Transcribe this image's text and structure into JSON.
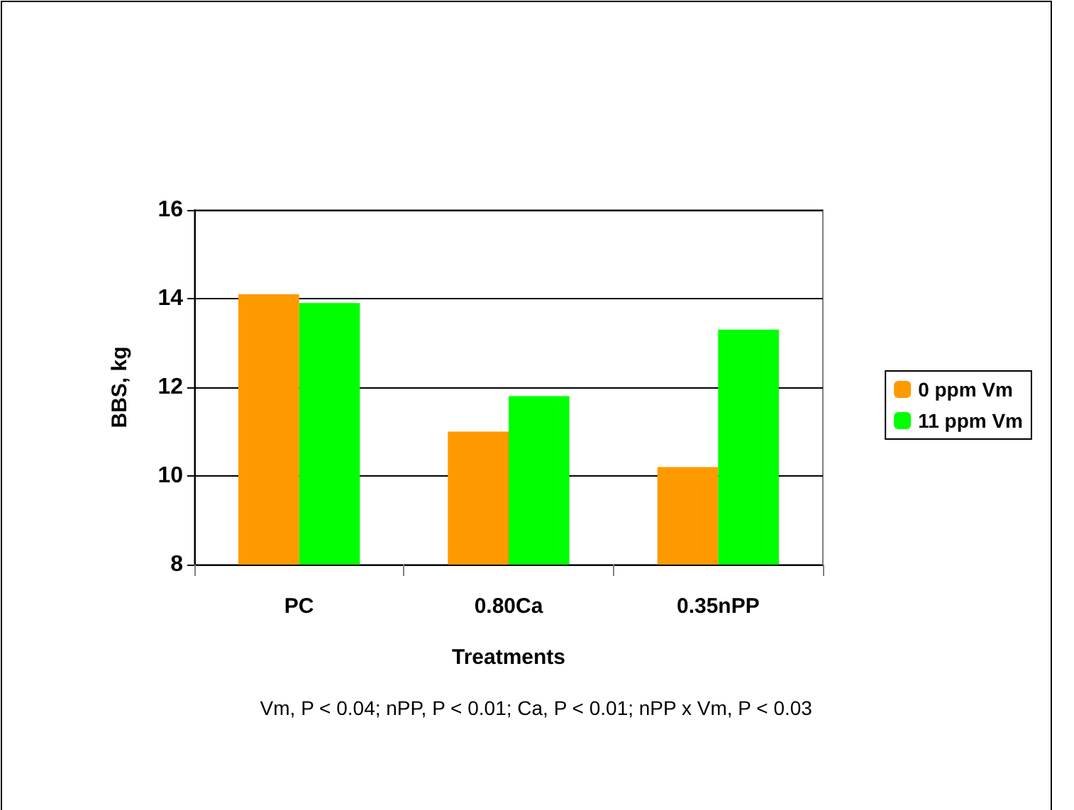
{
  "chart_data": {
    "type": "bar",
    "xlabel": "Treatments",
    "ylabel": "BBS, kg",
    "categories": [
      "PC",
      "0.80Ca",
      "0.35nPP"
    ],
    "series": [
      {
        "name": "0 ppm Vm",
        "color": "#ff9900",
        "values": [
          14.1,
          11.0,
          10.2
        ]
      },
      {
        "name": "11 ppm Vm",
        "color": "#00ff00",
        "values": [
          13.9,
          11.8,
          13.3
        ]
      }
    ],
    "ylim": [
      8,
      16
    ],
    "yticks": [
      8,
      10,
      12,
      14,
      16
    ],
    "grid": "y",
    "legend": "right",
    "annotations": [
      "Vm, P < 0.04; nPP, P < 0.01; Ca, P < 0.01; nPP x Vm, P < 0.03"
    ]
  }
}
